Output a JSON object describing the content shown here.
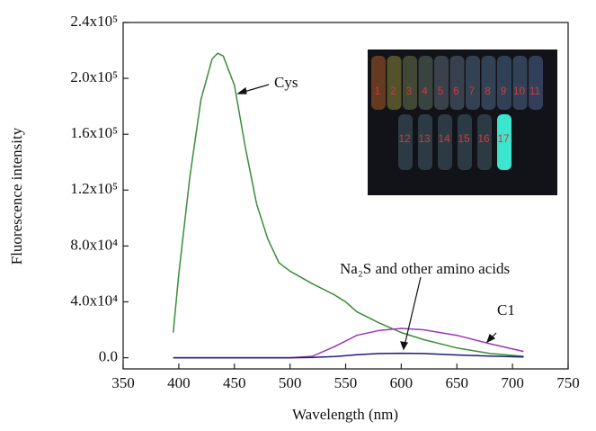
{
  "chart_data": {
    "type": "line",
    "x_label": "Wavelength (nm)",
    "y_label": "Fluorescence intensity",
    "x": [
      395,
      400,
      410,
      420,
      430,
      435,
      440,
      450,
      460,
      470,
      480,
      490,
      500,
      520,
      540,
      550,
      560,
      580,
      600,
      620,
      650,
      680,
      710
    ],
    "series": [
      {
        "name": "Cys",
        "color": "#3b8c3b",
        "values": [
          18000,
          60000,
          130000,
          185000,
          214000,
          218000,
          216000,
          195000,
          150000,
          110000,
          85000,
          68000,
          62000,
          53000,
          45000,
          40000,
          33000,
          25000,
          18000,
          13000,
          7000,
          3000,
          1000
        ]
      },
      {
        "name": "C1",
        "color": "#9b35b5",
        "values": [
          0,
          0,
          0,
          0,
          0,
          0,
          0,
          0,
          0,
          0,
          0,
          0,
          0,
          1000,
          8000,
          12000,
          16000,
          19500,
          21000,
          20000,
          16000,
          10000,
          4500
        ]
      },
      {
        "name": "Na₂S and other amino acids",
        "color": "#1c1c7a",
        "values": [
          0,
          0,
          0,
          0,
          0,
          0,
          0,
          0,
          0,
          0,
          0,
          0,
          0,
          200,
          800,
          1500,
          2200,
          3000,
          3200,
          3000,
          2000,
          1200,
          500
        ]
      }
    ],
    "xlim": [
      350,
      750
    ],
    "xticks": [
      350,
      400,
      450,
      500,
      550,
      600,
      650,
      700,
      750
    ],
    "ylim": [
      -8000,
      240000
    ],
    "yticks": [
      {
        "value": 0,
        "label": "0.0"
      },
      {
        "value": 40000,
        "label": "4.0x10⁴"
      },
      {
        "value": 80000,
        "label": "8.0x10⁴"
      },
      {
        "value": 120000,
        "label": "1.2x10⁵"
      },
      {
        "value": 160000,
        "label": "1.6x10⁵"
      },
      {
        "value": 200000,
        "label": "2.0x10⁵"
      },
      {
        "value": 240000,
        "label": "2.4x10⁵"
      }
    ],
    "inset_labels": [
      "1",
      "2",
      "3",
      "4",
      "5",
      "6",
      "7",
      "8",
      "9",
      "10",
      "11",
      "12",
      "13",
      "14",
      "15",
      "16",
      "17"
    ]
  }
}
